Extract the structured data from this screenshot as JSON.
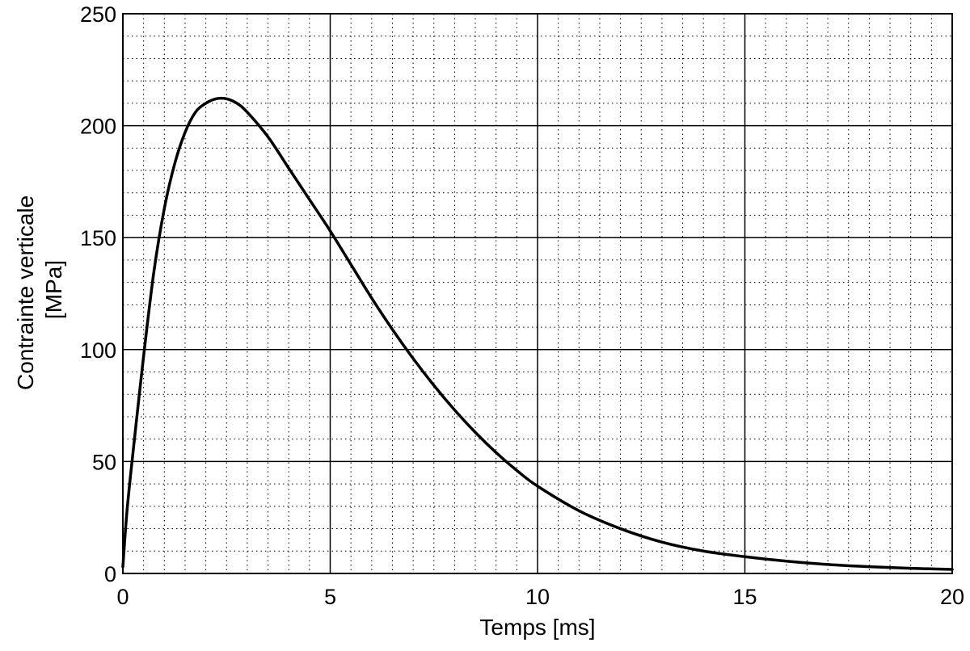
{
  "chart_data": {
    "type": "line",
    "title": "",
    "xlabel": "Temps [ms]",
    "ylabel": [
      "Contrainte verticale",
      "[MPa]"
    ],
    "xlim": [
      0,
      20
    ],
    "ylim": [
      0,
      250
    ],
    "x_ticks": [
      0,
      5,
      10,
      15,
      20
    ],
    "y_ticks": [
      0,
      50,
      100,
      150,
      200,
      250
    ],
    "x_minor_step": 0.5,
    "y_minor_step": 10,
    "grid": true,
    "legend": "none",
    "line_color": "#000000",
    "series": [
      {
        "x": [
          0,
          0.1,
          0.25,
          0.5,
          0.75,
          1.0,
          1.25,
          1.5,
          1.75,
          2.0,
          2.25,
          2.5,
          2.75,
          3.0,
          3.5,
          4.0,
          4.5,
          5.0,
          5.5,
          6.0,
          6.5,
          7.0,
          7.5,
          8.0,
          8.5,
          9.0,
          9.5,
          10.0,
          11.0,
          12.0,
          13.0,
          14.0,
          15.0,
          16.0,
          17.0,
          18.0,
          19.0,
          20.0
        ],
        "values": [
          3,
          28,
          55,
          97,
          135,
          163,
          183,
          197,
          206,
          210,
          212,
          212,
          210,
          206,
          195,
          181,
          167,
          153,
          138,
          123,
          109,
          96,
          84,
          73,
          63,
          54,
          46,
          39,
          28,
          20,
          14,
          10,
          7.5,
          5.5,
          4,
          3,
          2.3,
          1.8
        ]
      }
    ]
  }
}
